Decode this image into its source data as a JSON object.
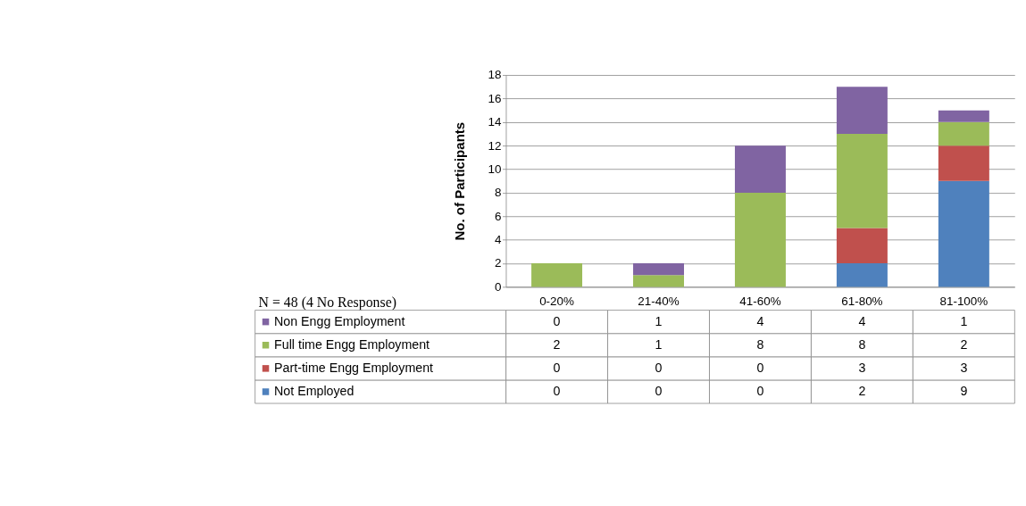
{
  "chart_data": {
    "type": "bar",
    "stacked": true,
    "ylabel": "No. of Participants",
    "categories": [
      "0-20%",
      "21-40%",
      "41-60%",
      "61-80%",
      "81-100%"
    ],
    "series": [
      {
        "name": "Not Employed",
        "color": "#4f81bd",
        "values": [
          0,
          0,
          0,
          2,
          9
        ]
      },
      {
        "name": "Part-time Engg Employment",
        "color": "#c0504d",
        "values": [
          0,
          0,
          0,
          3,
          3
        ]
      },
      {
        "name": "Full time Engg Employment",
        "color": "#9bbb59",
        "values": [
          2,
          1,
          8,
          8,
          2
        ]
      },
      {
        "name": "Non Engg Employment",
        "color": "#8064a2",
        "values": [
          0,
          1,
          4,
          4,
          1
        ]
      }
    ],
    "ylim": [
      0,
      18
    ],
    "yticks": [
      0,
      2,
      4,
      6,
      8,
      10,
      12,
      14,
      16,
      18
    ],
    "grid": "y",
    "data_labels": true,
    "legend": "bottom",
    "annotations": [
      "N = 48 (4 No Response)"
    ]
  }
}
